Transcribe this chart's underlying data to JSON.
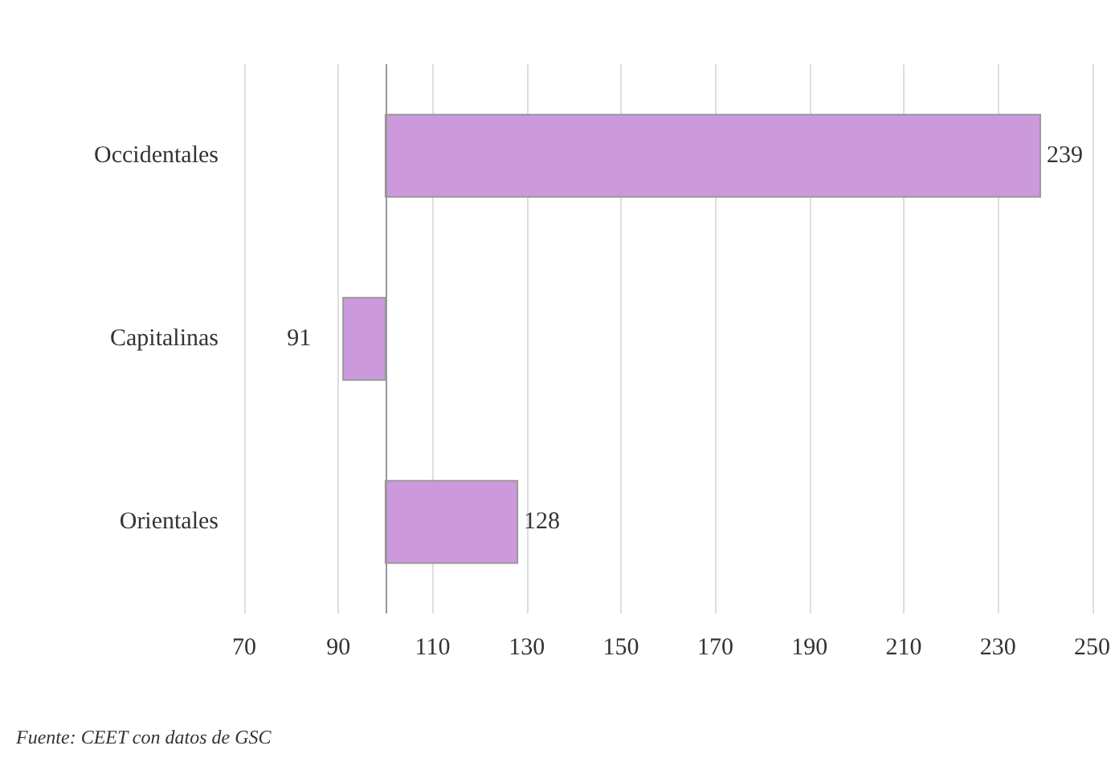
{
  "chart_data": {
    "type": "bar",
    "orientation": "horizontal",
    "categories": [
      "Occidentales",
      "Capitalinas",
      "Orientales"
    ],
    "base": [
      100,
      100,
      100
    ],
    "values": [
      139,
      -9,
      28
    ],
    "value_labels": [
      "239",
      "91",
      "128"
    ],
    "color": "#cc99dd",
    "xlim": [
      70,
      250
    ],
    "xticks": [
      70,
      90,
      110,
      130,
      150,
      170,
      190,
      210,
      230,
      250
    ],
    "grid": "x",
    "ref_lines": [
      {
        "axis": "x",
        "value": 100,
        "label": null,
        "color": "#999999"
      }
    ],
    "annotations": [
      "Fuente: CEET con datos de GSC"
    ]
  }
}
